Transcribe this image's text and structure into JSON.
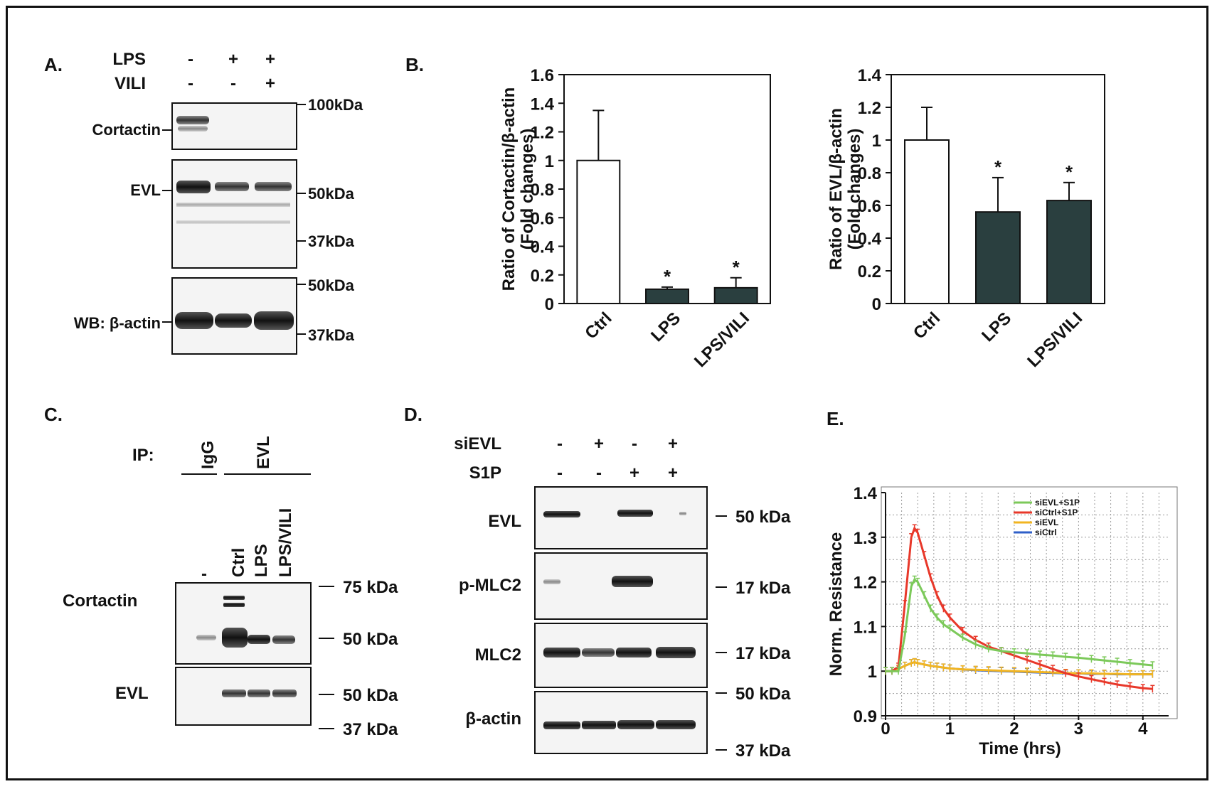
{
  "panels": {
    "a": {
      "label": "A.",
      "row_lps": "LPS",
      "row_vili": "VILI",
      "lps_signs": [
        "-",
        "+",
        "+"
      ],
      "vili_signs": [
        "-",
        "-",
        "+"
      ],
      "band_cortactin": "Cortactin",
      "band_evl": "EVL",
      "band_actin": "WB: β-actin",
      "markers": [
        "100kDa",
        "50kDa",
        "37kDa",
        "50kDa",
        "37kDa"
      ]
    },
    "b": {
      "label": "B."
    },
    "c": {
      "label": "C.",
      "ip_label": "IP:",
      "group_igg": "IgG",
      "group_evl": "EVL",
      "lanes": [
        "-",
        "Ctrl",
        "LPS",
        "LPS/VILI"
      ],
      "band_cortactin": "Cortactin",
      "band_evl": "EVL",
      "markers": [
        "75 kDa",
        "50 kDa",
        "50 kDa",
        "37 kDa"
      ]
    },
    "d": {
      "label": "D.",
      "row_sievl": "siEVL",
      "row_s1p": "S1P",
      "sievl_signs": [
        "-",
        "+",
        "-",
        "+"
      ],
      "s1p_signs": [
        "-",
        "-",
        "+",
        "+"
      ],
      "band_evl": "EVL",
      "band_pmlc2": "p-MLC2",
      "band_mlc2": "MLC2",
      "band_actin": "β-actin",
      "markers": [
        "50 kDa",
        "17 kDa",
        "17 kDa",
        "50 kDa",
        "37 kDa"
      ]
    },
    "e": {
      "label": "E."
    }
  },
  "chart_data": [
    {
      "type": "bar",
      "id": "b-cortactin",
      "title": "",
      "categories": [
        "Ctrl",
        "LPS",
        "LPS/VILI"
      ],
      "values": [
        1.0,
        0.1,
        0.11
      ],
      "errors": [
        0.35,
        0.015,
        0.07
      ],
      "significance": [
        "",
        "*",
        "*"
      ],
      "bar_colors": [
        "#ffffff",
        "#2a3f3f",
        "#2a3f3f"
      ],
      "ylabel": "Ratio of Cortactin/β-actin",
      "ylabel2": "(Fold changes)",
      "ylim": [
        0,
        1.6
      ],
      "yticks": [
        "0",
        "0.2",
        "0.4",
        "0.6",
        "0.8",
        "1",
        "1.2",
        "1.4",
        "1.6"
      ]
    },
    {
      "type": "bar",
      "id": "b-evl",
      "title": "",
      "categories": [
        "Ctrl",
        "LPS",
        "LPS/VILI"
      ],
      "values": [
        1.0,
        0.56,
        0.63
      ],
      "errors": [
        0.2,
        0.21,
        0.11
      ],
      "significance": [
        "",
        "*",
        "*"
      ],
      "bar_colors": [
        "#ffffff",
        "#2a3f3f",
        "#2a3f3f"
      ],
      "ylabel": "Ratio of EVL/β-actin",
      "ylabel2": "(Fold changes)",
      "ylim": [
        0,
        1.4
      ],
      "yticks": [
        "0",
        "0.2",
        "0.4",
        "0.6",
        "0.8",
        "1",
        "1.2",
        "1.4"
      ]
    },
    {
      "type": "line",
      "id": "e-resistance",
      "title": "",
      "xlabel": "Time (hrs)",
      "ylabel": "Norm. Resistance",
      "xlim": [
        0,
        4.4
      ],
      "ylim": [
        0.9,
        1.4
      ],
      "xticks": [
        "0",
        "1",
        "2",
        "3",
        "4"
      ],
      "yticks": [
        "0.9",
        "1",
        "1.1",
        "1.2",
        "1.3",
        "1.4"
      ],
      "legend_position": "top-right",
      "x": [
        0,
        0.1,
        0.2,
        0.3,
        0.4,
        0.45,
        0.5,
        0.6,
        0.7,
        0.8,
        0.9,
        1.0,
        1.2,
        1.4,
        1.6,
        1.8,
        2.0,
        2.2,
        2.4,
        2.6,
        2.8,
        3.0,
        3.2,
        3.4,
        3.6,
        3.8,
        4.0,
        4.15
      ],
      "series": [
        {
          "name": "siEVL+S1P",
          "color": "#7cc95a",
          "values": [
            1.0,
            1.0,
            1.0,
            1.08,
            1.19,
            1.205,
            1.2,
            1.17,
            1.14,
            1.12,
            1.105,
            1.095,
            1.075,
            1.06,
            1.05,
            1.045,
            1.042,
            1.04,
            1.037,
            1.035,
            1.032,
            1.03,
            1.027,
            1.024,
            1.021,
            1.018,
            1.015,
            1.013
          ]
        },
        {
          "name": "siCtrl+S1P",
          "color": "#e8382a",
          "values": [
            1.0,
            1.0,
            1.01,
            1.15,
            1.3,
            1.32,
            1.31,
            1.26,
            1.21,
            1.17,
            1.14,
            1.12,
            1.09,
            1.07,
            1.055,
            1.045,
            1.035,
            1.025,
            1.015,
            1.005,
            0.995,
            0.988,
            0.982,
            0.976,
            0.97,
            0.966,
            0.962,
            0.96
          ]
        },
        {
          "name": "siEVL",
          "color": "#f2b521",
          "values": [
            1.0,
            1.0,
            1.005,
            1.012,
            1.018,
            1.02,
            1.018,
            1.015,
            1.012,
            1.01,
            1.008,
            1.006,
            1.004,
            1.003,
            1.002,
            1.001,
            1.0,
            0.999,
            0.998,
            0.997,
            0.996,
            0.995,
            0.995,
            0.994,
            0.994,
            0.993,
            0.993,
            0.993
          ]
        },
        {
          "name": "siCtrl",
          "color": "#2f5fc8",
          "values": [
            1.0,
            1.0,
            1.005,
            1.012,
            1.018,
            1.02,
            1.018,
            1.015,
            1.012,
            1.01,
            1.008,
            1.006,
            1.004,
            1.002,
            1.001,
            1.0,
            0.999,
            0.998,
            0.997,
            0.996,
            0.995,
            0.995,
            0.994,
            0.994,
            0.993,
            0.993,
            0.993,
            0.993
          ]
        }
      ]
    }
  ]
}
